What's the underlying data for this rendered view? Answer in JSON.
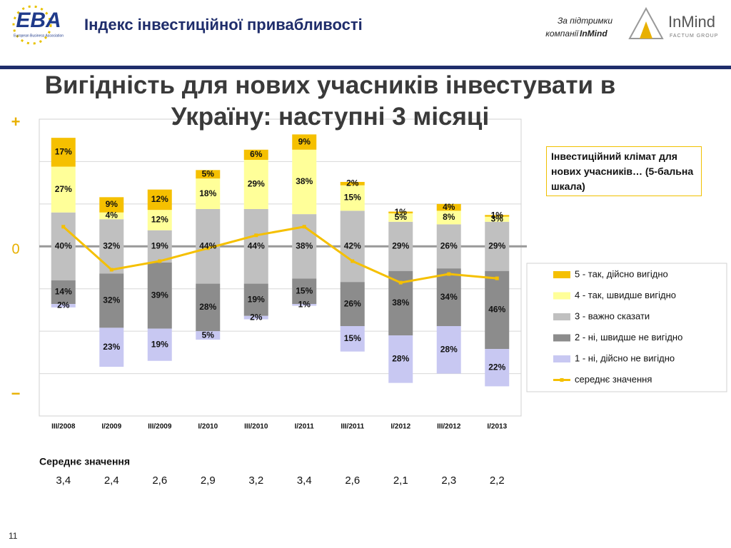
{
  "header": {
    "title": "Індекс інвестиційної привабливості",
    "support_line1": "За підтримки",
    "support_line2": "компанії",
    "brand": "InMind",
    "eba_logo": "EBA",
    "eba_caption": "European Business Association",
    "inmind_logo": "InMind",
    "inmind_caption": "FACTUM GROUP"
  },
  "page_number": "11",
  "chart_data": {
    "type": "diverging_bar",
    "title": "Вигідність для нових учасників інвестувати в Україну: наступні 3 місяці",
    "annotation": "Інвестиційний клімат для нових учасників… (5-бальна шкала)",
    "y_markers": [
      "+",
      "0",
      "−"
    ],
    "mean_row_title": "Середнє значення",
    "categories": [
      "III/2008",
      "I/2009",
      "III/2009",
      "I/2010",
      "III/2010",
      "I/2011",
      "III/2011",
      "I/2012",
      "III/2012",
      "I/2013"
    ],
    "ylim": [
      -100,
      75
    ],
    "yticks": [
      -75,
      -50,
      -25,
      0,
      25,
      50
    ],
    "grid": true,
    "y2lim": [
      -1,
      5.9
    ],
    "series": [
      {
        "name": "5 - так, дійсно вигідно",
        "color": "#f5c000",
        "values": [
          17,
          9,
          12,
          5,
          6,
          9,
          2,
          1,
          4,
          1
        ],
        "value_labels": [
          "17%",
          "9%",
          "12%",
          "5%",
          "6%",
          "9%",
          "2%",
          "1%",
          "4%",
          "1%"
        ]
      },
      {
        "name": "4 - так, швидше вигідно",
        "color": "#ffff99",
        "values": [
          27,
          4,
          12,
          18,
          29,
          38,
          15,
          5,
          8,
          3
        ],
        "value_labels": [
          "27%",
          "4%",
          "12%",
          "18%",
          "29%",
          "38%",
          "15%",
          "5%",
          "8%",
          "3%"
        ]
      },
      {
        "name": "3 - важно сказати",
        "color": "#c0c0c0",
        "values": [
          40,
          32,
          19,
          44,
          44,
          38,
          42,
          29,
          26,
          29
        ],
        "value_labels": [
          "40%",
          "32%",
          "19%",
          "44%",
          "44%",
          "38%",
          "42%",
          "29%",
          "26%",
          "29%"
        ]
      },
      {
        "name": "2 - ні, швидше не вигідно",
        "color": "#8c8c8c",
        "values": [
          14,
          32,
          39,
          28,
          19,
          15,
          26,
          38,
          34,
          46
        ],
        "value_labels": [
          "14%",
          "32%",
          "39%",
          "28%",
          "19%",
          "15%",
          "26%",
          "38%",
          "34%",
          "46%"
        ]
      },
      {
        "name": "1 - ні, дійсно не вигідно",
        "color": "#c8c8f2",
        "values": [
          2,
          23,
          19,
          5,
          2,
          1,
          15,
          28,
          28,
          22
        ],
        "value_labels": [
          "2%",
          "23%",
          "19%",
          "5%",
          "2%",
          "1%",
          "15%",
          "28%",
          "28%",
          "22%"
        ]
      },
      {
        "name": "середнє значення",
        "color": "#f5c000",
        "type": "line",
        "axis": "y2",
        "values": [
          3.4,
          2.4,
          2.6,
          2.9,
          3.2,
          3.4,
          2.6,
          2.1,
          2.3,
          2.2
        ],
        "value_labels": [
          "3,4",
          "2,4",
          "2,6",
          "2,9",
          "3,2",
          "3,4",
          "2,6",
          "2,1",
          "2,3",
          "2,2"
        ]
      }
    ]
  }
}
